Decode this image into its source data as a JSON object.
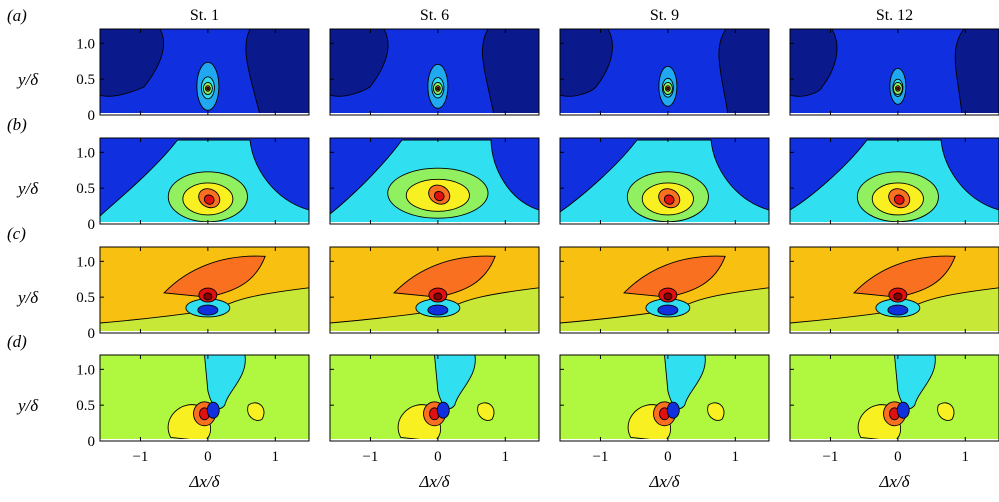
{
  "columns": [
    "St. 1",
    "St. 6",
    "St. 9",
    "St. 12"
  ],
  "rows": [
    "(a)",
    "(b)",
    "(c)",
    "(d)"
  ],
  "chart_data": {
    "type": "heatmap",
    "xlabel": "Δx/δ",
    "ylabel": "y/δ",
    "xlim": [
      -1.6,
      1.5
    ],
    "ylim": [
      0,
      1.2
    ],
    "xticks": [
      -1,
      0,
      1
    ],
    "yticks": [
      0,
      0.5,
      1.0
    ],
    "ytick_labels": [
      "0",
      "0.5",
      "1.0"
    ],
    "xtick_labels": [
      "−1",
      "0",
      "1"
    ],
    "colors": {
      "dark_blue": "#0a1a8c",
      "blue": "#1030e0",
      "cyan": "#30e0f0",
      "mid_blue": "#20a8f0",
      "green": "#90f060",
      "lime": "#b0f840",
      "yellow": "#f8f020",
      "orange_yellow": "#f8c010",
      "orange": "#f87020",
      "red": "#e01010",
      "dark_red": "#8a0000"
    },
    "panels": [
      {
        "row": "(a)",
        "column": "St. 1",
        "peak_x": 0,
        "peak_y": 0.4
      },
      {
        "row": "(a)",
        "column": "St. 6",
        "peak_x": 0,
        "peak_y": 0.4
      },
      {
        "row": "(a)",
        "column": "St. 9",
        "peak_x": 0,
        "peak_y": 0.4
      },
      {
        "row": "(a)",
        "column": "St. 12",
        "peak_x": 0,
        "peak_y": 0.4
      },
      {
        "row": "(b)",
        "column": "St. 1",
        "peak_x": 0,
        "peak_y": 0.4
      },
      {
        "row": "(b)",
        "column": "St. 6",
        "peak_x": 0,
        "peak_y": 0.45
      },
      {
        "row": "(b)",
        "column": "St. 9",
        "peak_x": 0,
        "peak_y": 0.4
      },
      {
        "row": "(b)",
        "column": "St. 12",
        "peak_x": 0,
        "peak_y": 0.4
      },
      {
        "row": "(c)",
        "column": "St. 1",
        "peak_x": 0,
        "peak_y": 0.4
      },
      {
        "row": "(c)",
        "column": "St. 6",
        "peak_x": 0,
        "peak_y": 0.4
      },
      {
        "row": "(c)",
        "column": "St. 9",
        "peak_x": 0,
        "peak_y": 0.4
      },
      {
        "row": "(c)",
        "column": "St. 12",
        "peak_x": 0,
        "peak_y": 0.4
      },
      {
        "row": "(d)",
        "column": "St. 1",
        "peak_x": 0,
        "peak_y": 0.4
      },
      {
        "row": "(d)",
        "column": "St. 6",
        "peak_x": 0,
        "peak_y": 0.4
      },
      {
        "row": "(d)",
        "column": "St. 9",
        "peak_x": 0,
        "peak_y": 0.4
      },
      {
        "row": "(d)",
        "column": "St. 12",
        "peak_x": 0,
        "peak_y": 0.4
      }
    ]
  }
}
